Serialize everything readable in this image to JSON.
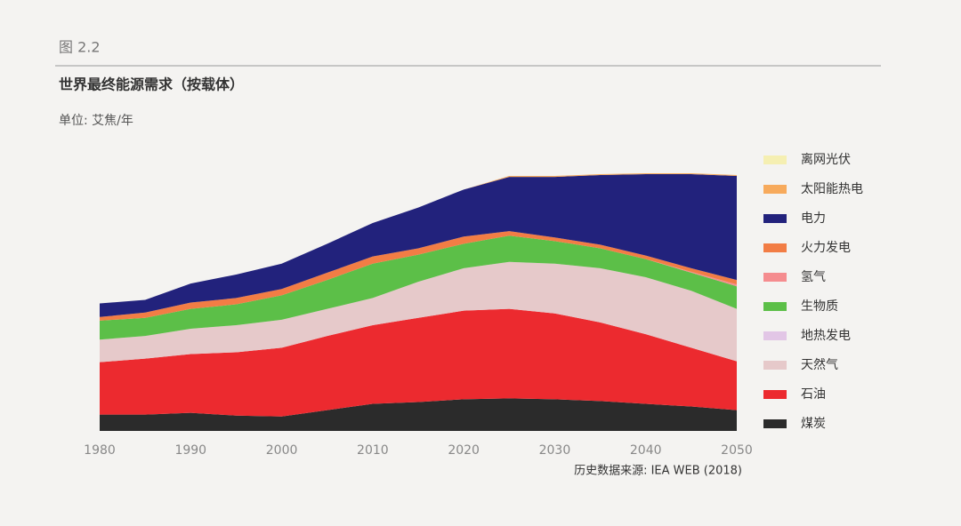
{
  "figure_label": "图 2.2",
  "chart_data": {
    "type": "stacked-area",
    "title": "世界最终能源需求（按载体）",
    "subtitle": "单位: 艾焦/年",
    "source": "历史数据来源: IEA WEB (2018)",
    "x": [
      1980,
      1985,
      1990,
      1995,
      2000,
      2005,
      2010,
      2015,
      2020,
      2025,
      2030,
      2035,
      2040,
      2045,
      2050
    ],
    "xlim": [
      1980,
      2050
    ],
    "xticks": [
      1980,
      1990,
      2000,
      2010,
      2020,
      2030,
      2040,
      2050
    ],
    "series": [
      {
        "name": "煤炭",
        "color": "#2b2b2b",
        "values": [
          18,
          18,
          20,
          17,
          16,
          23,
          30,
          32,
          35,
          36,
          35,
          33,
          30,
          27,
          23
        ]
      },
      {
        "name": "石油",
        "color": "#ec2a2f",
        "values": [
          58,
          62,
          65,
          70,
          76,
          82,
          87,
          93,
          98,
          99,
          95,
          87,
          77,
          65,
          54
        ]
      },
      {
        "name": "天然气",
        "color": "#e6c9ca",
        "values": [
          25,
          25,
          28,
          30,
          31,
          30,
          30,
          40,
          47,
          52,
          55,
          60,
          63,
          63,
          58
        ]
      },
      {
        "name": "地热发电",
        "color": "#e2c6e6",
        "values": [
          0,
          0,
          0,
          0,
          0,
          0,
          0,
          0,
          0,
          0,
          0,
          0,
          0,
          0,
          0
        ]
      },
      {
        "name": "生物质",
        "color": "#5cbf48",
        "values": [
          21,
          20,
          22,
          23,
          27,
          32,
          38,
          30,
          27,
          29,
          25,
          22,
          20,
          20,
          25
        ]
      },
      {
        "name": "氢气",
        "color": "#f58c8f",
        "values": [
          0,
          0,
          0,
          0,
          0,
          0,
          0,
          0,
          0,
          0,
          0,
          0,
          0,
          1,
          2
        ]
      },
      {
        "name": "火力发电",
        "color": "#f27d45",
        "values": [
          4,
          6,
          7,
          7,
          7,
          8,
          8,
          7,
          8,
          5,
          4,
          4,
          4,
          4,
          5
        ]
      },
      {
        "name": "电力",
        "color": "#22227c",
        "values": [
          15,
          14,
          21,
          26,
          28,
          32,
          37,
          45,
          52,
          60,
          67,
          77,
          90,
          104,
          115
        ]
      },
      {
        "name": "太阳能热电",
        "color": "#f7aa5c",
        "values": [
          0,
          0,
          0,
          0,
          0,
          0,
          0,
          0,
          0,
          1,
          1,
          1,
          1,
          1,
          1
        ]
      },
      {
        "name": "离网光伏",
        "color": "#f5efb2",
        "values": [
          0,
          0,
          0,
          0,
          0,
          0,
          0,
          0,
          0,
          0,
          0,
          0,
          0,
          0,
          0
        ]
      }
    ]
  }
}
